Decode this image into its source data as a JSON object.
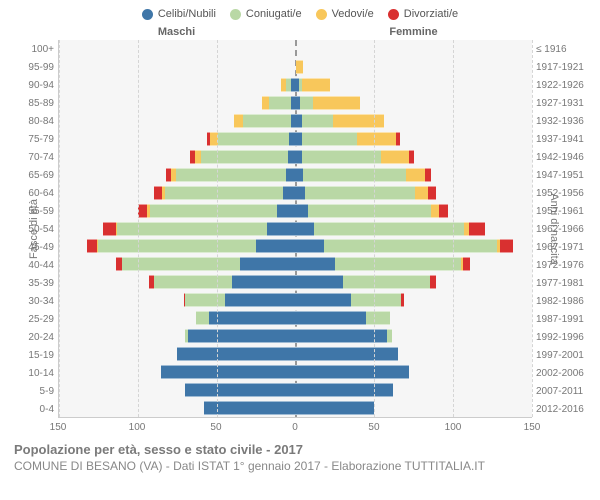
{
  "title": "Popolazione per età, sesso e stato civile - 2017",
  "subtitle": "COMUNE DI BESANO (VA) - Dati ISTAT 1° gennaio 2017 - Elaborazione TUTTITALIA.IT",
  "legend": [
    {
      "label": "Celibi/Nubili",
      "color": "#3f76a8"
    },
    {
      "label": "Coniugati/e",
      "color": "#b9d8a5"
    },
    {
      "label": "Vedovi/e",
      "color": "#f8c75b"
    },
    {
      "label": "Divorziati/e",
      "color": "#d93030"
    }
  ],
  "side_labels": {
    "left": "Maschi",
    "right": "Femmine"
  },
  "axis_titles": {
    "left": "Fasce di età",
    "right": "Anni di nascita"
  },
  "x_ticks": [
    150,
    100,
    50,
    0,
    50,
    100,
    150
  ],
  "x_max": 150,
  "colors": {
    "celibi": "#3f76a8",
    "coniugati": "#b9d8a5",
    "vedovi": "#f8c75b",
    "divorziati": "#d93030",
    "plot_bg": "#f6f6f6",
    "grid": "#d5d5d5",
    "center": "#999999",
    "text": "#777777"
  },
  "rows": [
    {
      "age": "100+",
      "birth": "≤ 1916",
      "m": {
        "c": 0,
        "co": 0,
        "v": 0,
        "d": 0
      },
      "f": {
        "c": 0,
        "co": 0,
        "v": 0,
        "d": 0
      }
    },
    {
      "age": "95-99",
      "birth": "1917-1921",
      "m": {
        "c": 0,
        "co": 0,
        "v": 0,
        "d": 0
      },
      "f": {
        "c": 0,
        "co": 0,
        "v": 5,
        "d": 0
      }
    },
    {
      "age": "90-94",
      "birth": "1922-1926",
      "m": {
        "c": 3,
        "co": 3,
        "v": 3,
        "d": 0
      },
      "f": {
        "c": 2,
        "co": 2,
        "v": 18,
        "d": 0
      }
    },
    {
      "age": "85-89",
      "birth": "1927-1931",
      "m": {
        "c": 3,
        "co": 14,
        "v": 4,
        "d": 0
      },
      "f": {
        "c": 3,
        "co": 8,
        "v": 30,
        "d": 0
      }
    },
    {
      "age": "80-84",
      "birth": "1932-1936",
      "m": {
        "c": 3,
        "co": 30,
        "v": 6,
        "d": 0
      },
      "f": {
        "c": 4,
        "co": 20,
        "v": 32,
        "d": 0
      }
    },
    {
      "age": "75-79",
      "birth": "1937-1941",
      "m": {
        "c": 4,
        "co": 45,
        "v": 5,
        "d": 2
      },
      "f": {
        "c": 4,
        "co": 35,
        "v": 25,
        "d": 2
      }
    },
    {
      "age": "70-74",
      "birth": "1942-1946",
      "m": {
        "c": 5,
        "co": 55,
        "v": 4,
        "d": 3
      },
      "f": {
        "c": 4,
        "co": 50,
        "v": 18,
        "d": 3
      }
    },
    {
      "age": "65-69",
      "birth": "1947-1951",
      "m": {
        "c": 6,
        "co": 70,
        "v": 3,
        "d": 3
      },
      "f": {
        "c": 5,
        "co": 65,
        "v": 12,
        "d": 4
      }
    },
    {
      "age": "60-64",
      "birth": "1952-1956",
      "m": {
        "c": 8,
        "co": 75,
        "v": 2,
        "d": 5
      },
      "f": {
        "c": 6,
        "co": 70,
        "v": 8,
        "d": 5
      }
    },
    {
      "age": "55-59",
      "birth": "1957-1961",
      "m": {
        "c": 12,
        "co": 80,
        "v": 2,
        "d": 6
      },
      "f": {
        "c": 8,
        "co": 78,
        "v": 5,
        "d": 6
      }
    },
    {
      "age": "50-54",
      "birth": "1962-1966",
      "m": {
        "c": 18,
        "co": 95,
        "v": 1,
        "d": 8
      },
      "f": {
        "c": 12,
        "co": 95,
        "v": 3,
        "d": 10
      }
    },
    {
      "age": "45-49",
      "birth": "1967-1971",
      "m": {
        "c": 25,
        "co": 100,
        "v": 1,
        "d": 6
      },
      "f": {
        "c": 18,
        "co": 110,
        "v": 2,
        "d": 8
      }
    },
    {
      "age": "40-44",
      "birth": "1972-1976",
      "m": {
        "c": 35,
        "co": 75,
        "v": 0,
        "d": 4
      },
      "f": {
        "c": 25,
        "co": 80,
        "v": 1,
        "d": 5
      }
    },
    {
      "age": "35-39",
      "birth": "1977-1981",
      "m": {
        "c": 40,
        "co": 50,
        "v": 0,
        "d": 3
      },
      "f": {
        "c": 30,
        "co": 55,
        "v": 0,
        "d": 4
      }
    },
    {
      "age": "30-34",
      "birth": "1982-1986",
      "m": {
        "c": 45,
        "co": 25,
        "v": 0,
        "d": 1
      },
      "f": {
        "c": 35,
        "co": 32,
        "v": 0,
        "d": 2
      }
    },
    {
      "age": "25-29",
      "birth": "1987-1991",
      "m": {
        "c": 55,
        "co": 8,
        "v": 0,
        "d": 0
      },
      "f": {
        "c": 45,
        "co": 15,
        "v": 0,
        "d": 0
      }
    },
    {
      "age": "20-24",
      "birth": "1992-1996",
      "m": {
        "c": 68,
        "co": 2,
        "v": 0,
        "d": 0
      },
      "f": {
        "c": 58,
        "co": 3,
        "v": 0,
        "d": 0
      }
    },
    {
      "age": "15-19",
      "birth": "1997-2001",
      "m": {
        "c": 75,
        "co": 0,
        "v": 0,
        "d": 0
      },
      "f": {
        "c": 65,
        "co": 0,
        "v": 0,
        "d": 0
      }
    },
    {
      "age": "10-14",
      "birth": "2002-2006",
      "m": {
        "c": 85,
        "co": 0,
        "v": 0,
        "d": 0
      },
      "f": {
        "c": 72,
        "co": 0,
        "v": 0,
        "d": 0
      }
    },
    {
      "age": "5-9",
      "birth": "2007-2011",
      "m": {
        "c": 70,
        "co": 0,
        "v": 0,
        "d": 0
      },
      "f": {
        "c": 62,
        "co": 0,
        "v": 0,
        "d": 0
      }
    },
    {
      "age": "0-4",
      "birth": "2012-2016",
      "m": {
        "c": 58,
        "co": 0,
        "v": 0,
        "d": 0
      },
      "f": {
        "c": 50,
        "co": 0,
        "v": 0,
        "d": 0
      }
    }
  ]
}
